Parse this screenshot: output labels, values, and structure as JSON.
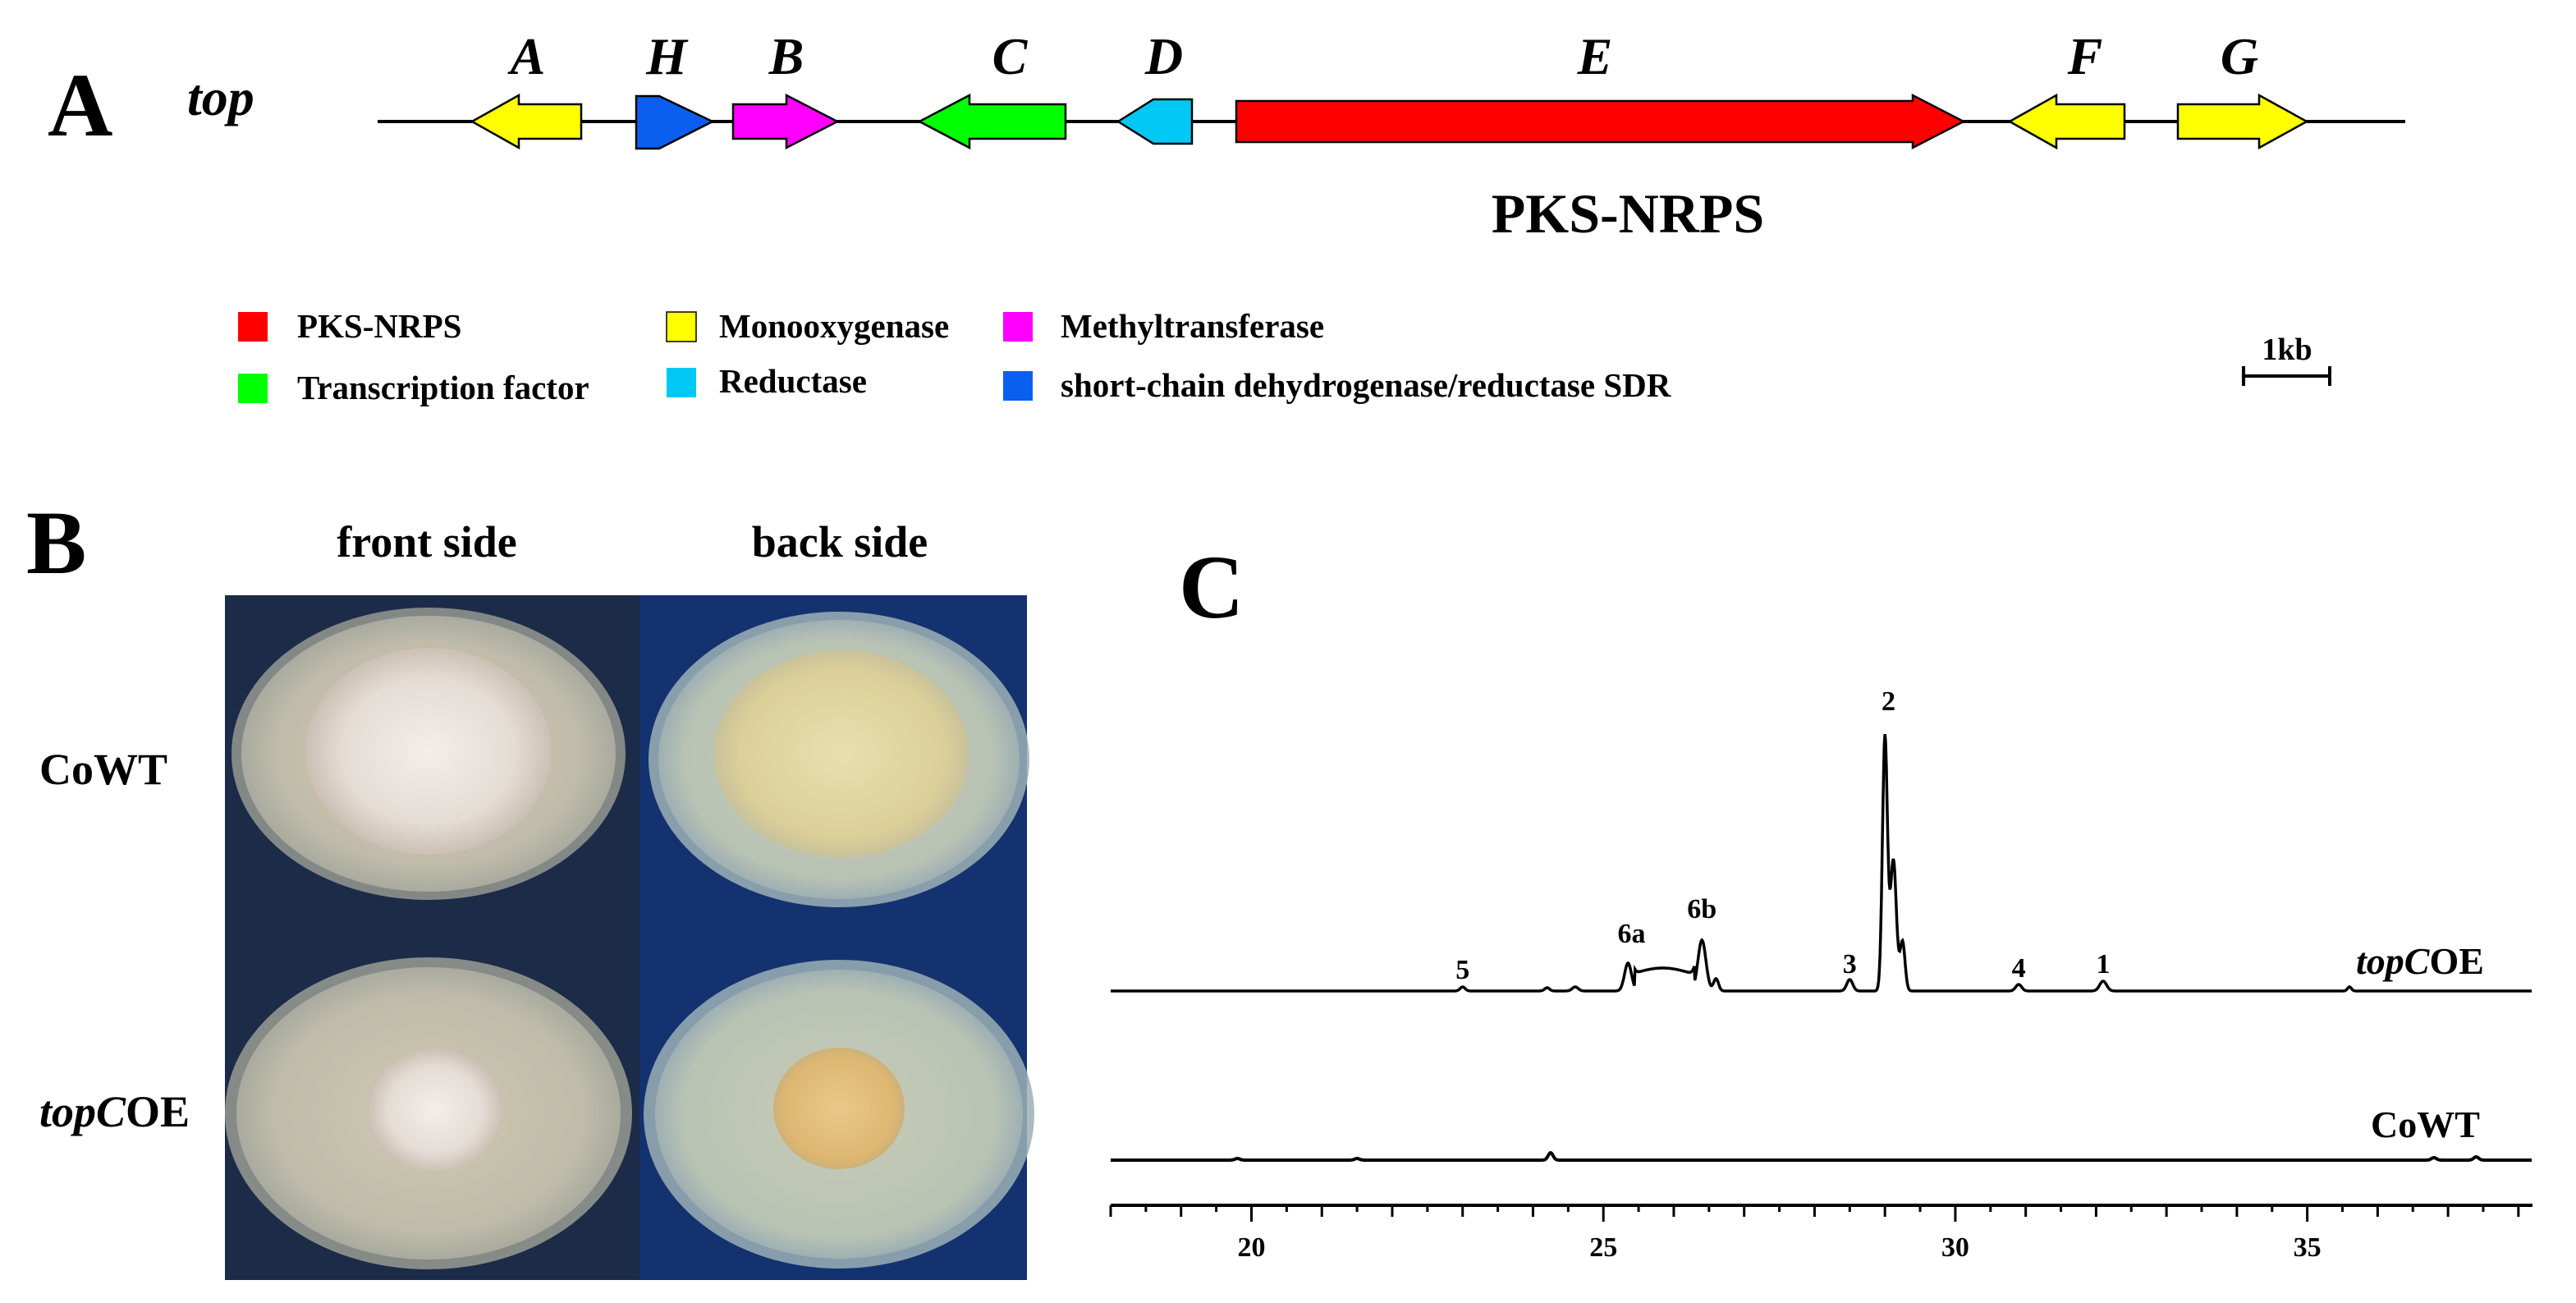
{
  "panelA": {
    "label": "A",
    "cluster_name": "top",
    "genes": [
      {
        "name": "A",
        "direction": "left",
        "color": "#ffff00"
      },
      {
        "name": "H",
        "direction": "right",
        "color": "#0a5ff0"
      },
      {
        "name": "B",
        "direction": "right",
        "color": "#ff00ff"
      },
      {
        "name": "C",
        "direction": "left",
        "color": "#00ff00"
      },
      {
        "name": "D",
        "direction": "left",
        "color": "#00c8f5"
      },
      {
        "name": "E",
        "direction": "right",
        "color": "#ff0000"
      },
      {
        "name": "F",
        "direction": "left",
        "color": "#ffff00"
      },
      {
        "name": "G",
        "direction": "right",
        "color": "#ffff00"
      }
    ],
    "e_label": "PKS-NRPS",
    "legend": [
      {
        "label": "PKS-NRPS",
        "color": "#ff0000"
      },
      {
        "label": "Transcription factor",
        "color": "#00ff00"
      },
      {
        "label": "Monooxygenase",
        "color": "#ffff00"
      },
      {
        "label": "Reductase",
        "color": "#00c8f5"
      },
      {
        "label": "Methyltransferase",
        "color": "#ff00ff"
      },
      {
        "label": "short-chain dehydrogenase/reductase SDR",
        "color": "#0a5ff0"
      }
    ],
    "scale_label": "1kb"
  },
  "panelB": {
    "label": "B",
    "col_headers": [
      "front side",
      "back side"
    ],
    "rows": [
      {
        "italic": "",
        "rest": "CoWT"
      },
      {
        "italic": "topC",
        "rest": "OE"
      }
    ]
  },
  "panelC": {
    "label": "C",
    "trace_top": {
      "italic": "topC",
      "rest": "OE"
    },
    "trace_bottom": "CoWT",
    "peaks": [
      {
        "label": "5",
        "x": 23.0
      },
      {
        "label": "6a",
        "x": 25.4
      },
      {
        "label": "6b",
        "x": 26.4
      },
      {
        "label": "3",
        "x": 28.5
      },
      {
        "label": "2",
        "x": 29.05
      },
      {
        "label": "4",
        "x": 30.9
      },
      {
        "label": "1",
        "x": 32.1
      }
    ],
    "x_ticks": [
      "20",
      "25",
      "30",
      "35"
    ],
    "x_range": [
      18,
      38.2
    ]
  }
}
